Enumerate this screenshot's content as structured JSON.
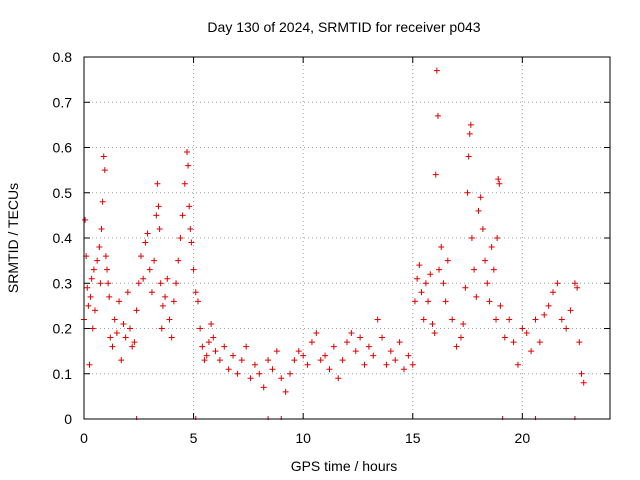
{
  "chart_data": {
    "type": "scatter",
    "title": "Day 130 of 2024, SRMTID for receiver p043",
    "xlabel": "GPS time / hours",
    "ylabel": "SRMTID / TECUs",
    "xlim": [
      0,
      24
    ],
    "ylim": [
      0,
      0.8
    ],
    "xticks": [
      0,
      5,
      10,
      15,
      20
    ],
    "xtick_labels": [
      "0",
      "5",
      "10",
      "15",
      "20"
    ],
    "yticks": [
      0,
      0.1,
      0.2,
      0.3,
      0.4,
      0.5,
      0.6,
      0.7,
      0.8
    ],
    "ytick_labels": [
      "0",
      "0.1",
      "0.2",
      "0.3",
      "0.4",
      "0.5",
      "0.6",
      "0.7",
      "0.8"
    ],
    "grid": true,
    "marker": "+",
    "color": "#e00000",
    "series": [
      {
        "name": "SRMTID",
        "x": [
          0.0,
          0.05,
          0.1,
          0.15,
          0.2,
          0.25,
          0.3,
          0.35,
          0.4,
          0.45,
          0.5,
          0.6,
          0.7,
          0.75,
          0.8,
          0.85,
          0.9,
          0.95,
          1.0,
          1.05,
          1.1,
          1.15,
          1.2,
          1.3,
          1.4,
          1.5,
          1.6,
          1.7,
          1.8,
          1.9,
          2.0,
          2.1,
          2.2,
          2.3,
          2.4,
          2.5,
          2.6,
          2.7,
          2.8,
          2.9,
          3.0,
          3.1,
          3.2,
          3.3,
          3.35,
          3.4,
          3.45,
          3.5,
          3.55,
          3.6,
          3.7,
          3.8,
          3.9,
          4.0,
          4.1,
          4.2,
          4.3,
          4.4,
          4.5,
          4.6,
          4.7,
          4.75,
          4.8,
          4.85,
          4.9,
          5.0,
          5.1,
          5.2,
          5.3,
          5.4,
          5.5,
          5.6,
          5.7,
          5.8,
          5.9,
          6.0,
          6.2,
          6.4,
          6.6,
          6.8,
          7.0,
          7.2,
          7.4,
          7.6,
          7.8,
          8.0,
          8.2,
          8.4,
          8.6,
          8.8,
          9.0,
          9.2,
          9.4,
          9.6,
          9.8,
          10.0,
          10.2,
          10.4,
          10.6,
          10.8,
          11.0,
          11.2,
          11.4,
          11.6,
          11.8,
          12.0,
          12.2,
          12.4,
          12.6,
          12.8,
          13.0,
          13.2,
          13.4,
          13.6,
          13.8,
          14.0,
          14.2,
          14.4,
          14.6,
          14.8,
          15.0,
          15.1,
          15.2,
          15.3,
          15.4,
          15.5,
          15.6,
          15.7,
          15.8,
          15.9,
          16.0,
          16.05,
          16.1,
          16.15,
          16.2,
          16.3,
          16.4,
          16.5,
          16.6,
          16.8,
          17.0,
          17.2,
          17.3,
          17.4,
          17.5,
          17.55,
          17.6,
          17.65,
          17.7,
          17.8,
          17.9,
          18.0,
          18.1,
          18.2,
          18.3,
          18.4,
          18.5,
          18.6,
          18.7,
          18.8,
          18.85,
          18.9,
          18.95,
          19.0,
          19.2,
          19.4,
          19.6,
          19.8,
          20.0,
          20.2,
          20.4,
          20.6,
          20.8,
          21.0,
          21.2,
          21.4,
          21.6,
          21.8,
          22.0,
          22.2,
          22.4,
          22.5,
          22.6,
          22.7,
          22.8
        ],
        "y": [
          0.22,
          0.44,
          0.36,
          0.29,
          0.25,
          0.12,
          0.27,
          0.31,
          0.2,
          0.33,
          0.24,
          0.35,
          0.38,
          0.3,
          0.42,
          0.48,
          0.58,
          0.55,
          0.36,
          0.33,
          0.3,
          0.27,
          0.18,
          0.16,
          0.22,
          0.19,
          0.26,
          0.13,
          0.21,
          0.18,
          0.28,
          0.2,
          0.16,
          0.17,
          0.24,
          0.3,
          0.36,
          0.31,
          0.39,
          0.41,
          0.33,
          0.28,
          0.35,
          0.45,
          0.52,
          0.47,
          0.42,
          0.3,
          0.2,
          0.25,
          0.27,
          0.31,
          0.22,
          0.18,
          0.26,
          0.3,
          0.35,
          0.4,
          0.45,
          0.52,
          0.59,
          0.56,
          0.47,
          0.42,
          0.39,
          0.33,
          0.28,
          0.26,
          0.2,
          0.16,
          0.13,
          0.14,
          0.17,
          0.21,
          0.18,
          0.15,
          0.13,
          0.16,
          0.11,
          0.14,
          0.1,
          0.13,
          0.16,
          0.09,
          0.12,
          0.1,
          0.07,
          0.13,
          0.11,
          0.15,
          0.09,
          0.06,
          0.1,
          0.13,
          0.15,
          0.14,
          0.12,
          0.17,
          0.19,
          0.13,
          0.14,
          0.11,
          0.16,
          0.09,
          0.13,
          0.17,
          0.19,
          0.15,
          0.18,
          0.12,
          0.16,
          0.14,
          0.22,
          0.18,
          0.12,
          0.15,
          0.13,
          0.17,
          0.11,
          0.14,
          0.12,
          0.26,
          0.31,
          0.34,
          0.28,
          0.22,
          0.3,
          0.26,
          0.32,
          0.21,
          0.19,
          0.54,
          0.77,
          0.67,
          0.33,
          0.38,
          0.3,
          0.26,
          0.35,
          0.22,
          0.16,
          0.18,
          0.21,
          0.29,
          0.5,
          0.58,
          0.63,
          0.65,
          0.4,
          0.33,
          0.27,
          0.46,
          0.49,
          0.42,
          0.35,
          0.3,
          0.26,
          0.38,
          0.33,
          0.22,
          0.4,
          0.53,
          0.52,
          0.25,
          0.18,
          0.22,
          0.17,
          0.12,
          0.2,
          0.19,
          0.15,
          0.22,
          0.17,
          0.23,
          0.25,
          0.28,
          0.3,
          0.22,
          0.2,
          0.24,
          0.3,
          0.29,
          0.17,
          0.1,
          0.08
        ]
      }
    ],
    "zero_markers_x": [
      2.4,
      5.1,
      8.4,
      9.0,
      19.1,
      20.6,
      22.4
    ]
  }
}
